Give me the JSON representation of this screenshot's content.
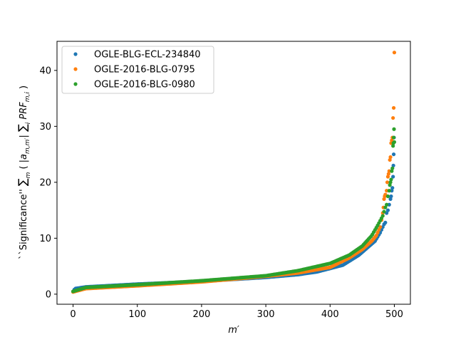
{
  "chart_data": {
    "type": "scatter",
    "xlabel": "m′",
    "ylabel": "``Significance''  ∑m ( |a m,m′| ∑i PRF m,i )",
    "xlim": [
      -25,
      525
    ],
    "ylim": [
      -1.8,
      45.2
    ],
    "x_ticks": [
      0,
      100,
      200,
      300,
      400,
      500
    ],
    "y_ticks": [
      0,
      10,
      20,
      30,
      40
    ],
    "grid": false,
    "legend_placement": "top-left",
    "series": [
      {
        "name": "OGLE-BLG-ECL-234840",
        "color": "#1f77b4",
        "curve": [
          [
            0,
            0.5
          ],
          [
            3,
            1.0
          ],
          [
            20,
            1.3
          ],
          [
            100,
            1.8
          ],
          [
            200,
            2.3
          ],
          [
            300,
            3.0
          ],
          [
            350,
            3.5
          ],
          [
            380,
            4.0
          ],
          [
            420,
            5.2
          ],
          [
            445,
            7.0
          ],
          [
            460,
            8.5
          ],
          [
            470,
            9.5
          ],
          [
            478,
            11.0
          ],
          [
            484,
            12.5
          ],
          [
            486,
            12.8
          ]
        ],
        "tail": [
          [
            488,
            14.5
          ],
          [
            490,
            15.0
          ],
          [
            492,
            16.0
          ],
          [
            494,
            17.0
          ],
          [
            495,
            17.5
          ],
          [
            496,
            18.5
          ],
          [
            497,
            19.0
          ],
          [
            498,
            21.0
          ],
          [
            498.5,
            23.0
          ],
          [
            499,
            25.0
          ],
          [
            499.5,
            28.0
          ]
        ]
      },
      {
        "name": "OGLE-2016-BLG-0795",
        "color": "#ff7f0e",
        "curve": [
          [
            0,
            0.4
          ],
          [
            20,
            1.0
          ],
          [
            100,
            1.5
          ],
          [
            200,
            2.2
          ],
          [
            300,
            3.2
          ],
          [
            350,
            3.8
          ],
          [
            400,
            4.8
          ],
          [
            430,
            6.5
          ],
          [
            450,
            8.0
          ],
          [
            465,
            9.5
          ],
          [
            472,
            10.5
          ],
          [
            478,
            12.0
          ],
          [
            482,
            14.5
          ]
        ],
        "tail": [
          [
            483,
            15.5
          ],
          [
            484,
            17.0
          ],
          [
            485,
            17.5
          ],
          [
            486,
            17.8
          ],
          [
            488,
            18.5
          ],
          [
            489,
            20.0
          ],
          [
            490,
            21.0
          ],
          [
            491,
            21.5
          ],
          [
            492,
            22.0
          ],
          [
            493,
            24.0
          ],
          [
            494,
            24.5
          ],
          [
            495,
            27.0
          ],
          [
            496,
            27.5
          ],
          [
            497,
            28.0
          ],
          [
            498,
            31.5
          ],
          [
            499,
            33.3
          ],
          [
            500,
            43.2
          ]
        ]
      },
      {
        "name": "OGLE-2016-BLG-0980",
        "color": "#2ca02c",
        "curve": [
          [
            0,
            0.5
          ],
          [
            20,
            1.2
          ],
          [
            100,
            1.7
          ],
          [
            200,
            2.4
          ],
          [
            300,
            3.3
          ],
          [
            350,
            4.2
          ],
          [
            400,
            5.5
          ],
          [
            430,
            7.0
          ],
          [
            450,
            8.6
          ],
          [
            465,
            10.5
          ],
          [
            475,
            12.5
          ],
          [
            482,
            14.0
          ],
          [
            486,
            15.5
          ]
        ],
        "tail": [
          [
            488,
            16.0
          ],
          [
            490,
            17.5
          ],
          [
            492,
            18.5
          ],
          [
            493,
            19.5
          ],
          [
            494,
            20.0
          ],
          [
            495,
            20.5
          ],
          [
            496,
            22.0
          ],
          [
            497,
            22.5
          ],
          [
            498,
            26.5
          ],
          [
            498.5,
            27.0
          ],
          [
            499,
            28.0
          ],
          [
            499.5,
            29.5
          ],
          [
            500,
            27.2
          ]
        ]
      }
    ]
  }
}
